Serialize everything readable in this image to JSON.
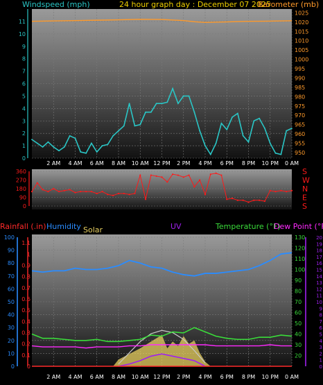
{
  "header": {
    "windspeed_label": "Windspeed (mph)",
    "title": "24 hour graph day : December 07 2025",
    "barometer_label": "Barometer (mb)"
  },
  "labels": {
    "rainfall": "Rainfall (.in)",
    "humidity": "Humidity",
    "solar": "Solar",
    "uv": "UV",
    "temperature": "Temperature (°F)",
    "dewpoint": "Dew Point (°F)"
  },
  "colors": {
    "wind": "#2ac6c6",
    "barometer": "#ff9a2a",
    "direction": "#ff1a1a",
    "rainfall": "#ff2a2a",
    "humidity": "#2a8cff",
    "solar": "#e8d060",
    "uv": "#a020f0",
    "temperature": "#3adc3a",
    "dewpoint": "#ff2aff",
    "white": "#ffffff"
  },
  "chart_data": [
    {
      "type": "line",
      "name": "wind_and_barometer",
      "x_tick_labels": [
        "2 AM",
        "4 AM",
        "6 AM",
        "8 AM",
        "10 AM",
        "12 PM",
        "2 PM",
        "4 PM",
        "6 PM",
        "8 PM",
        "10 PM",
        "0 AM"
      ],
      "x_hours": [
        2,
        4,
        6,
        8,
        10,
        12,
        14,
        16,
        18,
        20,
        22,
        24
      ],
      "xlim": [
        0,
        24
      ],
      "left_axis": {
        "label": "Windspeed (mph)",
        "ylim": [
          0,
          12
        ],
        "ticks": [
          0,
          1,
          2,
          3,
          4,
          5,
          6,
          7,
          8,
          9,
          10,
          11
        ]
      },
      "right_axis": {
        "label": "Barometer (mb)",
        "ylim": [
          947,
          1027
        ],
        "ticks": [
          950,
          955,
          960,
          965,
          970,
          975,
          980,
          985,
          990,
          995,
          1000,
          1005,
          1010,
          1015,
          1020,
          1025
        ]
      },
      "series": [
        {
          "name": "Windspeed (mph)",
          "x": [
            0,
            0.5,
            1,
            1.5,
            2,
            2.5,
            3,
            3.5,
            4,
            4.5,
            5,
            5.5,
            6,
            6.5,
            7,
            7.5,
            8,
            8.5,
            9,
            9.5,
            10,
            10.5,
            11,
            11.5,
            12,
            12.5,
            13,
            13.5,
            14,
            14.5,
            15,
            15.5,
            16,
            16.5,
            17,
            17.5,
            18,
            18.5,
            19,
            19.5,
            20,
            20.5,
            21,
            21.5,
            22,
            22.5,
            23,
            23.5,
            24
          ],
          "y": [
            1.5,
            1.2,
            0.9,
            1.3,
            0.9,
            0.6,
            0.9,
            1.8,
            1.6,
            0.5,
            0.4,
            1.2,
            0.5,
            1.0,
            1.1,
            1.8,
            2.2,
            2.6,
            4.4,
            2.6,
            2.7,
            3.7,
            3.7,
            4.4,
            4.4,
            4.5,
            5.6,
            4.4,
            5.0,
            5.0,
            3.7,
            2.2,
            1.0,
            0.3,
            1.2,
            2.8,
            2.3,
            3.3,
            3.6,
            1.8,
            1.3,
            3.0,
            3.2,
            2.4,
            1.2,
            0.4,
            0.3,
            2.2,
            2.4
          ]
        },
        {
          "name": "Barometer (mb)",
          "x": [
            0,
            2,
            4,
            6,
            8,
            10,
            12,
            14,
            15,
            16,
            18,
            20,
            22,
            24
          ],
          "y": [
            1020.4,
            1020.6,
            1020.8,
            1021.0,
            1021.2,
            1021.5,
            1021.4,
            1020.8,
            1020.2,
            1019.8,
            1020.1,
            1020.4,
            1020.5,
            1020.7
          ]
        }
      ]
    },
    {
      "type": "scatter",
      "name": "wind_direction",
      "xlim": [
        0,
        24
      ],
      "ylim": [
        0,
        360
      ],
      "ticks_left": [
        0,
        90,
        180,
        270,
        360
      ],
      "ticks_right": [
        "S",
        "E",
        "N",
        "W",
        "S"
      ],
      "series": [
        {
          "name": "Direction",
          "x": [
            0,
            0.5,
            1,
            1.5,
            2,
            2.5,
            3,
            3.5,
            4,
            4.5,
            5,
            5.5,
            6,
            6.5,
            7,
            7.5,
            8,
            8.5,
            9,
            9.5,
            10,
            10.5,
            11,
            11.5,
            12,
            12.5,
            13,
            13.5,
            14,
            14.5,
            15,
            15.5,
            16,
            16.5,
            17,
            17.5,
            18,
            18.5,
            19,
            19.5,
            20,
            20.5,
            21,
            21.5,
            22,
            22.5,
            23,
            23.5,
            24
          ],
          "y": [
            150,
            240,
            170,
            150,
            180,
            150,
            160,
            170,
            140,
            150,
            150,
            150,
            130,
            150,
            120,
            110,
            130,
            130,
            120,
            130,
            320,
            70,
            320,
            310,
            300,
            250,
            330,
            320,
            300,
            320,
            200,
            270,
            120,
            330,
            340,
            320,
            70,
            80,
            60,
            60,
            40,
            60,
            60,
            50,
            160,
            150,
            160,
            150,
            160
          ]
        }
      ]
    },
    {
      "type": "line",
      "name": "temp_humidity_rain_solar",
      "xlim": [
        0,
        24
      ],
      "axes": {
        "rainfall": {
          "ylim": [
            0,
            1.15
          ],
          "ticks": [
            "0",
            "0.1",
            "0.2",
            "0.3",
            "0.4",
            "0.5",
            "0.6",
            "0.7",
            "0.8",
            "0.9",
            "1",
            "1.1"
          ]
        },
        "humidity": {
          "ylim": [
            0,
            100
          ],
          "ticks": [
            0,
            10,
            20,
            30,
            40,
            50,
            60,
            70,
            80,
            90,
            100
          ]
        },
        "temperature": {
          "ylim": [
            10,
            130
          ],
          "ticks": [
            20,
            30,
            40,
            50,
            60,
            70,
            80,
            90,
            100,
            110,
            120,
            130
          ]
        },
        "uv": {
          "ylim": [
            0,
            20
          ],
          "ticks": [
            0,
            1,
            2,
            3,
            4,
            5,
            6,
            7,
            8,
            9,
            10,
            11,
            12,
            13,
            14,
            15,
            16,
            17,
            18,
            19,
            20
          ]
        }
      },
      "series": [
        {
          "name": "Humidity",
          "x": [
            0,
            1,
            2,
            3,
            4,
            5,
            6,
            7,
            8,
            9,
            10,
            11,
            12,
            13,
            14,
            15,
            16,
            17,
            18,
            19,
            20,
            21,
            22,
            23,
            24
          ],
          "y": [
            74,
            73,
            74,
            74,
            76,
            75,
            75,
            76,
            78,
            82,
            80,
            77,
            76,
            73,
            71,
            70,
            72,
            72,
            73,
            74,
            75,
            78,
            82,
            87,
            88
          ]
        },
        {
          "name": "Temperature (°F)",
          "x": [
            0,
            1,
            2,
            3,
            4,
            5,
            6,
            7,
            8,
            9,
            10,
            11,
            12,
            13,
            14,
            15,
            16,
            17,
            18,
            19,
            20,
            21,
            22,
            23,
            24
          ],
          "y": [
            40,
            36,
            36,
            35,
            34,
            34,
            35,
            33,
            33,
            34,
            35,
            39,
            38,
            42,
            41,
            46,
            42,
            38,
            36,
            35,
            35,
            37,
            37,
            39,
            38
          ]
        },
        {
          "name": "Dew Point (°F)",
          "x": [
            0,
            1,
            2,
            3,
            4,
            5,
            6,
            7,
            8,
            9,
            10,
            11,
            12,
            13,
            14,
            15,
            16,
            17,
            18,
            19,
            20,
            21,
            22,
            23,
            24
          ],
          "y": [
            29,
            28,
            28,
            28,
            28,
            27,
            28,
            28,
            28,
            29,
            29,
            30,
            30,
            30,
            30,
            30,
            30,
            29,
            29,
            29,
            29,
            29,
            30,
            29,
            29
          ]
        },
        {
          "name": "Solar",
          "x": [
            7.5,
            8,
            9,
            10,
            11,
            11.5,
            12,
            12.5,
            13,
            13.5,
            14,
            14.5,
            15,
            15.5,
            16,
            16.5
          ],
          "y": [
            0,
            0.06,
            0.11,
            0.16,
            0.22,
            0.25,
            0.28,
            0.16,
            0.22,
            0.18,
            0.27,
            0.2,
            0.23,
            0.12,
            0.04,
            0
          ]
        },
        {
          "name": "Solar envelope",
          "x": [
            8,
            9,
            10,
            11,
            12,
            13,
            14,
            15,
            16
          ],
          "y": [
            0.02,
            0.12,
            0.22,
            0.29,
            0.32,
            0.3,
            0.24,
            0.14,
            0.03
          ]
        },
        {
          "name": "UV",
          "x": [
            8,
            9,
            10,
            11,
            12,
            13,
            14,
            15,
            16
          ],
          "y": [
            0,
            0.02,
            0.05,
            0.09,
            0.11,
            0.09,
            0.07,
            0.05,
            0
          ]
        },
        {
          "name": "Rainfall",
          "x": [
            0,
            24
          ],
          "y": [
            0,
            0
          ]
        }
      ]
    }
  ]
}
